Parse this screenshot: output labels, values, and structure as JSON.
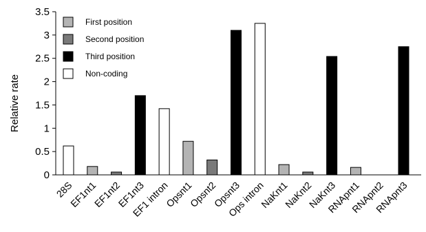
{
  "chart_data": {
    "type": "bar",
    "ylabel": "Relative rate",
    "xlabel": "",
    "ylim": [
      0,
      3.5
    ],
    "yticks": [
      "0",
      "0.5",
      "1",
      "1.5",
      "2",
      "2.5",
      "3",
      "3.5"
    ],
    "grid": false,
    "legend_position": "top-left",
    "categories": [
      "28S",
      "EF1nt1",
      "EF1nt2",
      "EF1nt3",
      "EF1 intron",
      "Opsnt1",
      "Opsnt2",
      "Opsnt3",
      "Ops intron",
      "NaKnt1",
      "NaKnt2",
      "NaKnt3",
      "RNApnt1",
      "RNApnt2",
      "RNApnt3"
    ],
    "series": [
      {
        "name": "First position",
        "color": "#b4b4b4",
        "values": [
          null,
          0.18,
          null,
          null,
          null,
          0.72,
          null,
          null,
          null,
          0.22,
          null,
          null,
          0.16,
          null,
          null
        ]
      },
      {
        "name": "Second position",
        "color": "#7a7a7a",
        "values": [
          null,
          null,
          0.06,
          null,
          null,
          null,
          0.32,
          null,
          null,
          null,
          0.06,
          null,
          null,
          0.0,
          null
        ]
      },
      {
        "name": "Third position",
        "color": "#000000",
        "values": [
          null,
          null,
          null,
          1.7,
          null,
          null,
          null,
          3.1,
          null,
          null,
          null,
          2.54,
          null,
          null,
          2.75
        ]
      },
      {
        "name": "Non-coding",
        "color": "#ffffff",
        "values": [
          0.62,
          null,
          null,
          null,
          1.42,
          null,
          null,
          null,
          3.25,
          null,
          null,
          null,
          null,
          null,
          null
        ]
      }
    ]
  }
}
